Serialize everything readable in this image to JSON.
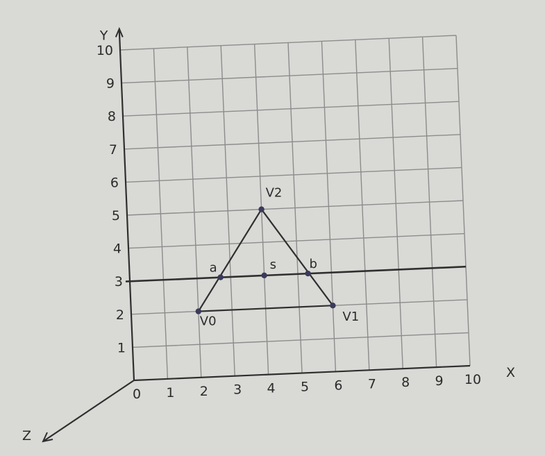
{
  "chart_data": {
    "type": "scatter",
    "x_axis": {
      "label": "X",
      "ticks": [
        "0",
        "1",
        "2",
        "3",
        "4",
        "5",
        "6",
        "7",
        "8",
        "9",
        "10"
      ],
      "range": [
        0,
        10
      ]
    },
    "y_axis": {
      "label": "Y",
      "ticks": [
        "1",
        "2",
        "3",
        "4",
        "5",
        "6",
        "7",
        "8",
        "9",
        "10"
      ],
      "range": [
        0,
        10
      ]
    },
    "z_axis": {
      "label": "Z"
    },
    "grid": true,
    "points": [
      {
        "id": "v0",
        "label": "V0",
        "x": 2,
        "y": 2
      },
      {
        "id": "v1",
        "label": "V1",
        "x": 6,
        "y": 2
      },
      {
        "id": "v2",
        "label": "V2",
        "x": 4,
        "y": 5
      },
      {
        "id": "a",
        "label": "a",
        "x": 2.7,
        "y": 3
      },
      {
        "id": "s",
        "label": "s",
        "x": 4,
        "y": 3
      },
      {
        "id": "b",
        "label": "b",
        "x": 5.3,
        "y": 3
      }
    ],
    "segments": [
      {
        "name": "edge-v0-v2",
        "from": "v0",
        "to": "v2"
      },
      {
        "name": "edge-v2-v1",
        "from": "v2",
        "to": "v1"
      },
      {
        "name": "edge-v0-v1",
        "from": "v0",
        "to": "v1"
      }
    ],
    "scanline_y": 3
  },
  "colors": {
    "ink": "#2f2f2f",
    "grid": "#8c8c8c",
    "point": "#3a3a5a",
    "paper": "#d9d9d6"
  }
}
